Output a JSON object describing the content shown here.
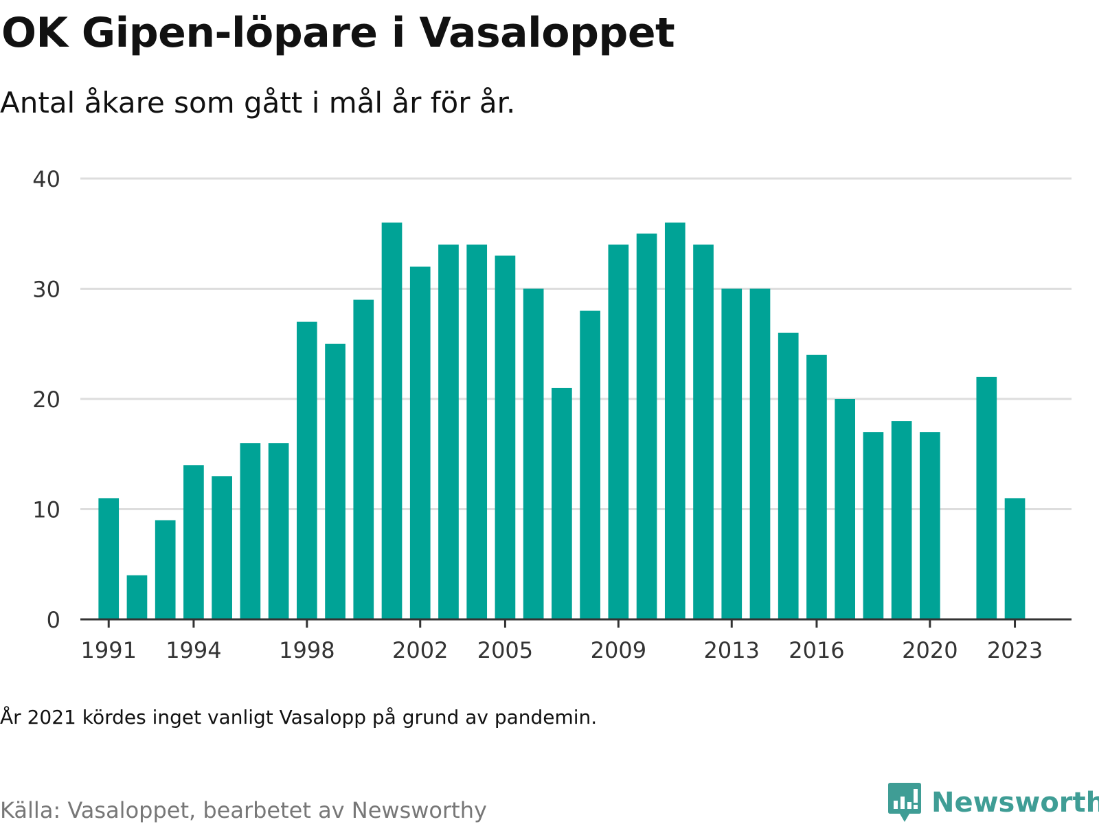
{
  "title": "OK Gipen-löpare i Vasaloppet",
  "subtitle": "Antal åkare som gått i mål år för år.",
  "note": "År 2021 kördes inget vanligt Vasalopp på grund av pandemin.",
  "source": "Källa: Vasaloppet, bearbetet av Newsworthy",
  "brand": {
    "name": "Newsworthy",
    "icon": "newsworthy-logo-icon"
  },
  "colors": {
    "bar": "#00a396",
    "grid": "#dddddd",
    "axis": "#333333",
    "text": "#333333",
    "brand": "#3f9d95"
  },
  "chart_data": {
    "type": "bar",
    "x": [
      1991,
      1992,
      1993,
      1994,
      1995,
      1996,
      1997,
      1998,
      1999,
      2000,
      2001,
      2002,
      2003,
      2004,
      2005,
      2006,
      2007,
      2008,
      2009,
      2010,
      2011,
      2012,
      2013,
      2014,
      2015,
      2016,
      2017,
      2018,
      2019,
      2020,
      2022,
      2023
    ],
    "values": [
      11,
      4,
      9,
      14,
      13,
      16,
      16,
      27,
      25,
      29,
      36,
      32,
      34,
      34,
      33,
      30,
      21,
      28,
      34,
      35,
      36,
      34,
      30,
      30,
      26,
      24,
      20,
      17,
      18,
      17,
      22,
      11
    ],
    "xlim": [
      1990,
      2025
    ],
    "ylim": [
      0,
      40
    ],
    "yticks": [
      0,
      10,
      20,
      30,
      40
    ],
    "xticks": [
      1991,
      1994,
      1998,
      2002,
      2005,
      2009,
      2013,
      2016,
      2020,
      2023
    ],
    "xlabel": "",
    "ylabel": "",
    "grid": true
  }
}
